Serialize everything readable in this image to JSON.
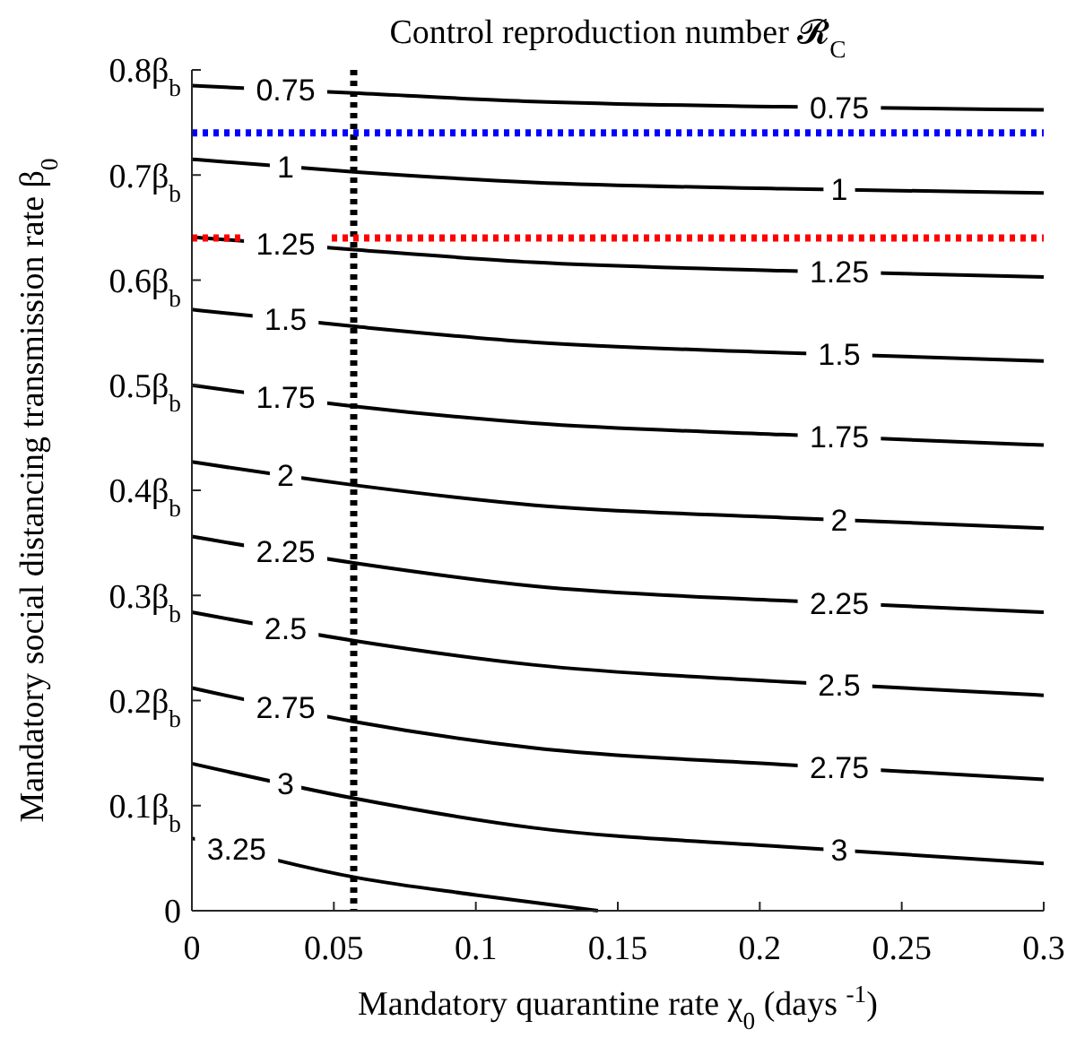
{
  "chart_data": {
    "type": "line",
    "title": "Control reproduction number 𝓡$_{C}$",
    "xlabel": "Mandatory quarantine rate χ$_{0}$ (days $^{-1}$)",
    "ylabel": "Mandatory social distancing transmission rate β$_{0}$",
    "x": [
      0,
      0.057,
      0.12,
      0.208,
      0.3
    ],
    "series": [
      {
        "name": "0.75",
        "color": "#000000",
        "values": [
          0.785,
          0.778,
          0.77,
          0.765,
          0.762
        ]
      },
      {
        "name": "1",
        "color": "#000000",
        "values": [
          0.715,
          0.703,
          0.693,
          0.687,
          0.683
        ]
      },
      {
        "name": "1.25",
        "color": "#000000",
        "values": [
          0.641,
          0.629,
          0.617,
          0.609,
          0.603
        ]
      },
      {
        "name": "1.5",
        "color": "#000000",
        "values": [
          0.572,
          0.556,
          0.541,
          0.531,
          0.523
        ]
      },
      {
        "name": "1.75",
        "color": "#000000",
        "values": [
          0.5,
          0.48,
          0.464,
          0.453,
          0.443
        ]
      },
      {
        "name": "2",
        "color": "#000000",
        "values": [
          0.427,
          0.405,
          0.386,
          0.374,
          0.364
        ]
      },
      {
        "name": "2.25",
        "color": "#000000",
        "values": [
          0.356,
          0.331,
          0.309,
          0.295,
          0.284
        ]
      },
      {
        "name": "2.5",
        "color": "#000000",
        "values": [
          0.284,
          0.257,
          0.234,
          0.218,
          0.205
        ]
      },
      {
        "name": "2.75",
        "color": "#000000",
        "values": [
          0.212,
          0.18,
          0.155,
          0.139,
          0.125
        ]
      },
      {
        "name": "3",
        "color": "#000000",
        "values": [
          0.14,
          0.107,
          0.079,
          0.061,
          0.045
        ]
      },
      {
        "name": "3.25",
        "color": "#000000",
        "x": [
          0,
          0.059,
          0.1,
          0.143
        ],
        "values": [
          0.069,
          0.031,
          0.015,
          0
        ]
      }
    ],
    "xlim": [
      0,
      0.3
    ],
    "xticks": [
      0,
      0.05,
      0.1,
      0.15,
      0.2,
      0.25,
      0.3
    ],
    "ylim": [
      0,
      0.8
    ],
    "yticks": [
      0,
      {
        "value": 0.1,
        "label": "0.1β$_{b}$"
      },
      {
        "value": 0.2,
        "label": "0.2β$_{b}$"
      },
      {
        "value": 0.3,
        "label": "0.3β$_{b}$"
      },
      {
        "value": 0.4,
        "label": "0.4β$_{b}$"
      },
      {
        "value": 0.5,
        "label": "0.5β$_{b}$"
      },
      {
        "value": 0.6,
        "label": "0.6β$_{b}$"
      },
      {
        "value": 0.7,
        "label": "0.7β$_{b}$"
      },
      {
        "value": 0.8,
        "label": "0.8β$_{b}$"
      }
    ],
    "ref_lines": [
      {
        "axis": "x",
        "value": 0.057,
        "color": "#000000",
        "line_style": "dotted"
      },
      {
        "axis": "y",
        "value": 0.74,
        "color": "#0000ff",
        "line_style": "dotted"
      },
      {
        "axis": "y",
        "value": 0.64,
        "color": "#ff0000",
        "line_style": "dotted"
      }
    ],
    "line_style": "solid",
    "grid": false
  }
}
